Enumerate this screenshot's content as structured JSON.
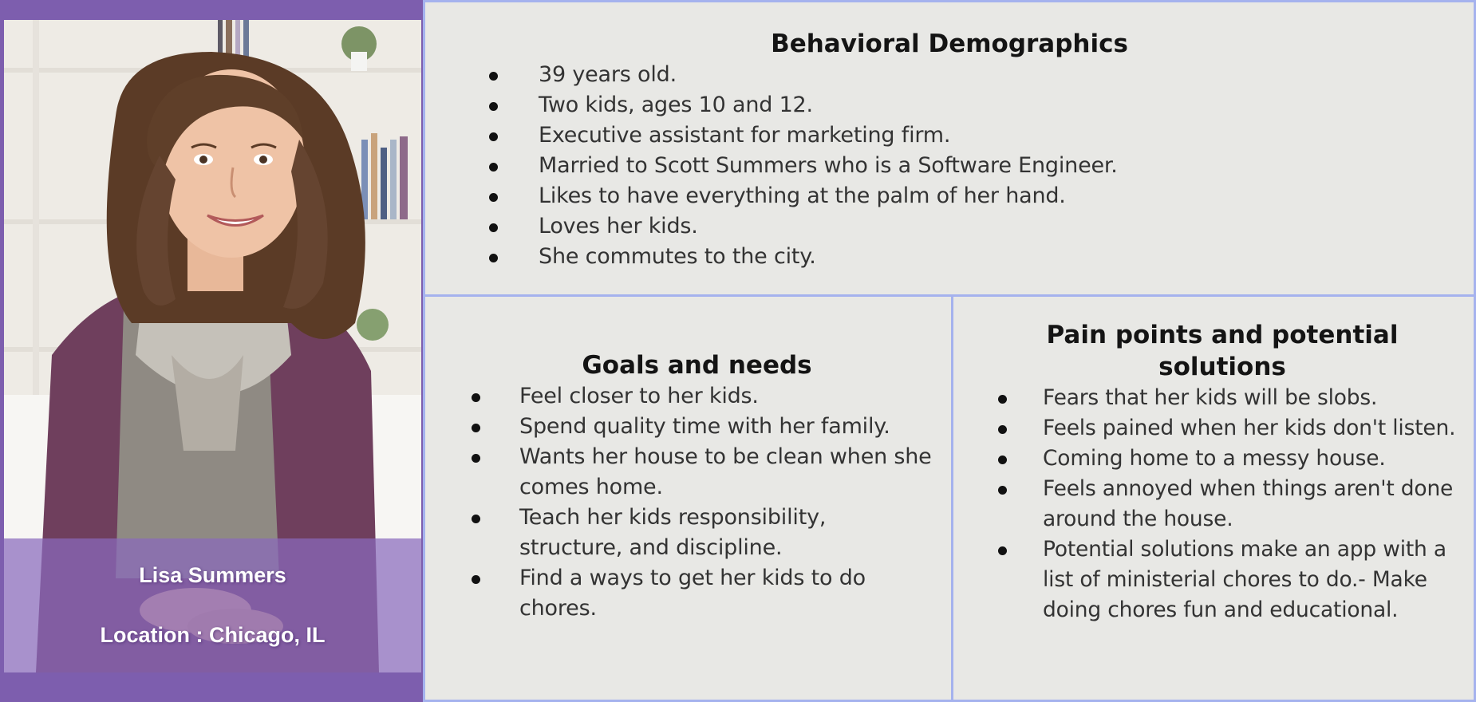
{
  "persona": {
    "name": "Lisa Summers",
    "location": "Location : Chicago, IL"
  },
  "behavioral": {
    "title": "Behavioral Demographics",
    "items": [
      "39 years old.",
      "Two kids, ages 10 and 12.",
      "Executive assistant for marketing firm.",
      "Married to Scott Summers who is a Software Engineer.",
      "Likes to have everything at the palm of her hand.",
      "Loves her kids.",
      "She commutes to the city."
    ]
  },
  "goals": {
    "title": "Goals and needs",
    "items": [
      "Feel closer to her kids.",
      "Spend quality time with her family.",
      "Wants her house to be clean when she comes home.",
      "Teach her kids responsibility, structure, and discipline.",
      "Find a ways to get her kids to do chores."
    ]
  },
  "pain_points": {
    "title": "Pain points and potential solutions",
    "items": [
      "Fears that her kids will be slobs.",
      "Feels pained when her kids don't listen.",
      "Coming home to a messy house.",
      "Feels annoyed when things aren't done around the house.",
      "Potential solutions make an app with a list of ministerial chores to do.- Make doing chores fun and educational."
    ]
  },
  "colors": {
    "accent_purple": "#7d5eae",
    "panel_border": "#a5b2ee",
    "panel_bg": "#e8e8e5"
  }
}
